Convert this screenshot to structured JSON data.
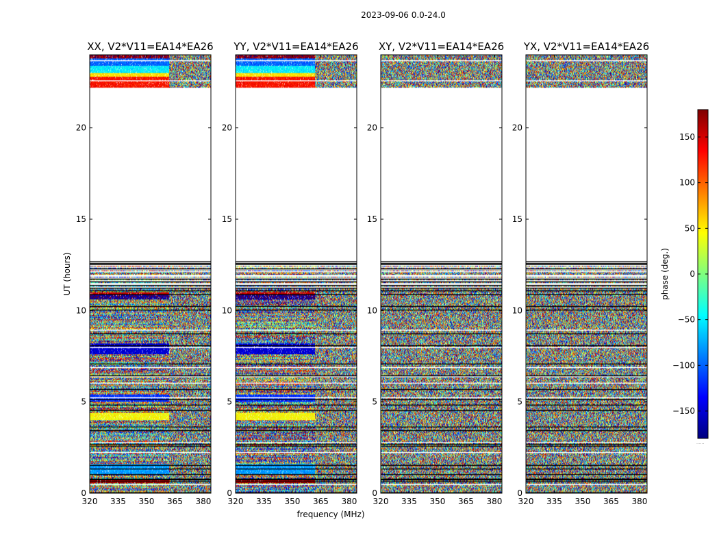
{
  "chart_data": {
    "type": "heatmap",
    "title": "2023-09-06 0.0-24.0",
    "xlabel": "frequency (MHz)",
    "ylabel": "UT (hours)",
    "xlim": [
      320,
      384
    ],
    "ylim": [
      0,
      24
    ],
    "x_ticks": [
      320,
      335,
      350,
      365,
      380
    ],
    "y_ticks": [
      0,
      5,
      10,
      15,
      20
    ],
    "colorbar": {
      "label": "phase (deg.)",
      "range": [
        -180,
        180
      ],
      "ticks": [
        150,
        100,
        50,
        0,
        -50,
        -100,
        -150
      ],
      "tick_labels": [
        "150",
        "100",
        "50",
        "0",
        "−50",
        "−100",
        "−150"
      ],
      "colormap": [
        "#00007f",
        "#0000ff",
        "#007fff",
        "#00ffff",
        "#7fff7f",
        "#ffff00",
        "#ff7f00",
        "#ff0000",
        "#7f0000"
      ],
      "footnote": "......"
    },
    "panels": [
      {
        "title": "XX, V2*V11=EA14*EA26",
        "structured": true
      },
      {
        "title": "YY, V2*V11=EA14*EA26",
        "structured": true
      },
      {
        "title": "XY, V2*V11=EA14*EA26",
        "structured": false
      },
      {
        "title": "YX, V2*V11=EA14*EA26",
        "structured": false
      }
    ],
    "data_gaps_hours": [
      [
        12.7,
        22.2
      ]
    ],
    "upper_block_hours": [
      22.2,
      24.0
    ],
    "lower_block_hours": [
      0.0,
      12.7
    ],
    "coherent_phase_bands": [
      {
        "start": 23.8,
        "end": 24.0,
        "phase": 170
      },
      {
        "start": 23.4,
        "end": 23.8,
        "phase": -100
      },
      {
        "start": 23.0,
        "end": 23.4,
        "phase": -50
      },
      {
        "start": 22.8,
        "end": 23.0,
        "phase": 55
      },
      {
        "start": 22.2,
        "end": 22.8,
        "phase": 130
      },
      {
        "start": 10.6,
        "end": 10.9,
        "phase": -170
      },
      {
        "start": 10.9,
        "end": 11.0,
        "phase": 160
      },
      {
        "start": 7.6,
        "end": 8.2,
        "phase": -150
      },
      {
        "start": 5.0,
        "end": 5.4,
        "phase": -120
      },
      {
        "start": 4.0,
        "end": 4.4,
        "phase": 45
      },
      {
        "start": 1.0,
        "end": 1.6,
        "phase": -80
      },
      {
        "start": 0.55,
        "end": 0.7,
        "phase": 160
      }
    ],
    "channel_break_mhz": 362
  }
}
